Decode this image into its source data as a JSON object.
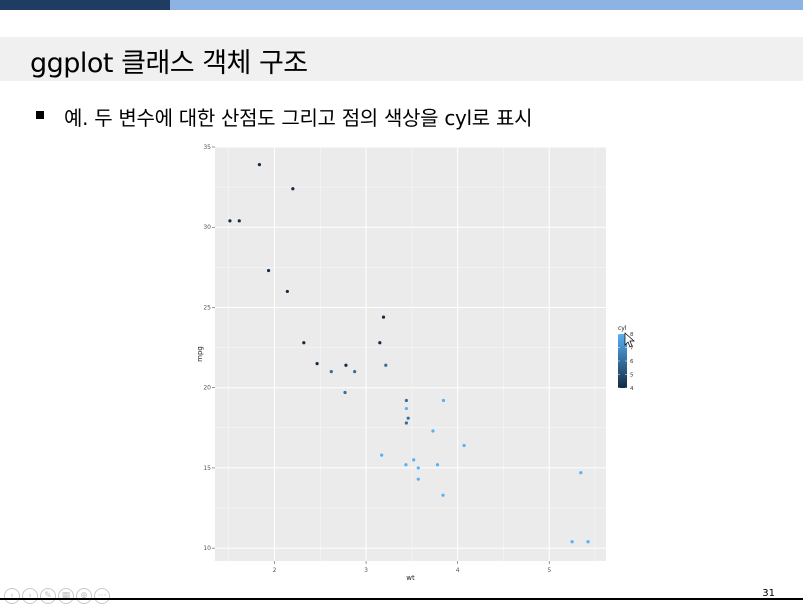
{
  "slide": {
    "title": "ggplot 클래스 객체 구조",
    "bullet": "예. 두 변수에 대한 산점도 그리고 점의 색상을 cyl로 표시",
    "page_number": "31"
  },
  "nav_icons": [
    "prev-icon",
    "next-icon",
    "pen-icon",
    "slides-icon",
    "zoom-icon",
    "options-icon"
  ],
  "colors": {
    "panel_bg": "#ebebeb",
    "grid": "#ffffff",
    "low": "#132b43",
    "high": "#56b1f7"
  },
  "chart_data": {
    "type": "scatter",
    "title": "",
    "xlabel": "wt",
    "ylabel": "mpg",
    "xlim": [
      1.35,
      5.62
    ],
    "ylim": [
      9.2,
      35
    ],
    "xticks": [
      2,
      3,
      4,
      5
    ],
    "yticks": [
      10,
      15,
      20,
      25,
      30,
      35
    ],
    "grid": true,
    "legend": {
      "title": "cyl",
      "position": "right",
      "ticks": [
        4,
        5,
        6,
        7,
        8
      ],
      "range": [
        4,
        8
      ]
    },
    "points": [
      {
        "x": 2.62,
        "y": 21.0,
        "cyl": 6
      },
      {
        "x": 2.875,
        "y": 21.0,
        "cyl": 6
      },
      {
        "x": 2.32,
        "y": 22.8,
        "cyl": 4
      },
      {
        "x": 3.215,
        "y": 21.4,
        "cyl": 6
      },
      {
        "x": 3.44,
        "y": 18.7,
        "cyl": 8
      },
      {
        "x": 3.46,
        "y": 18.1,
        "cyl": 6
      },
      {
        "x": 3.57,
        "y": 14.3,
        "cyl": 8
      },
      {
        "x": 3.19,
        "y": 24.4,
        "cyl": 4
      },
      {
        "x": 3.15,
        "y": 22.8,
        "cyl": 4
      },
      {
        "x": 3.44,
        "y": 19.2,
        "cyl": 6
      },
      {
        "x": 3.44,
        "y": 17.8,
        "cyl": 6
      },
      {
        "x": 4.07,
        "y": 16.4,
        "cyl": 8
      },
      {
        "x": 3.73,
        "y": 17.3,
        "cyl": 8
      },
      {
        "x": 3.78,
        "y": 15.2,
        "cyl": 8
      },
      {
        "x": 5.25,
        "y": 10.4,
        "cyl": 8
      },
      {
        "x": 5.424,
        "y": 10.4,
        "cyl": 8
      },
      {
        "x": 5.345,
        "y": 14.7,
        "cyl": 8
      },
      {
        "x": 2.2,
        "y": 32.4,
        "cyl": 4
      },
      {
        "x": 1.615,
        "y": 30.4,
        "cyl": 4
      },
      {
        "x": 1.835,
        "y": 33.9,
        "cyl": 4
      },
      {
        "x": 2.465,
        "y": 21.5,
        "cyl": 4
      },
      {
        "x": 3.52,
        "y": 15.5,
        "cyl": 8
      },
      {
        "x": 3.435,
        "y": 15.2,
        "cyl": 8
      },
      {
        "x": 3.84,
        "y": 13.3,
        "cyl": 8
      },
      {
        "x": 3.845,
        "y": 19.2,
        "cyl": 8
      },
      {
        "x": 1.935,
        "y": 27.3,
        "cyl": 4
      },
      {
        "x": 2.14,
        "y": 26.0,
        "cyl": 4
      },
      {
        "x": 1.513,
        "y": 30.4,
        "cyl": 4
      },
      {
        "x": 3.17,
        "y": 15.8,
        "cyl": 8
      },
      {
        "x": 2.77,
        "y": 19.7,
        "cyl": 6
      },
      {
        "x": 3.57,
        "y": 15.0,
        "cyl": 8
      },
      {
        "x": 2.78,
        "y": 21.4,
        "cyl": 4
      }
    ]
  }
}
